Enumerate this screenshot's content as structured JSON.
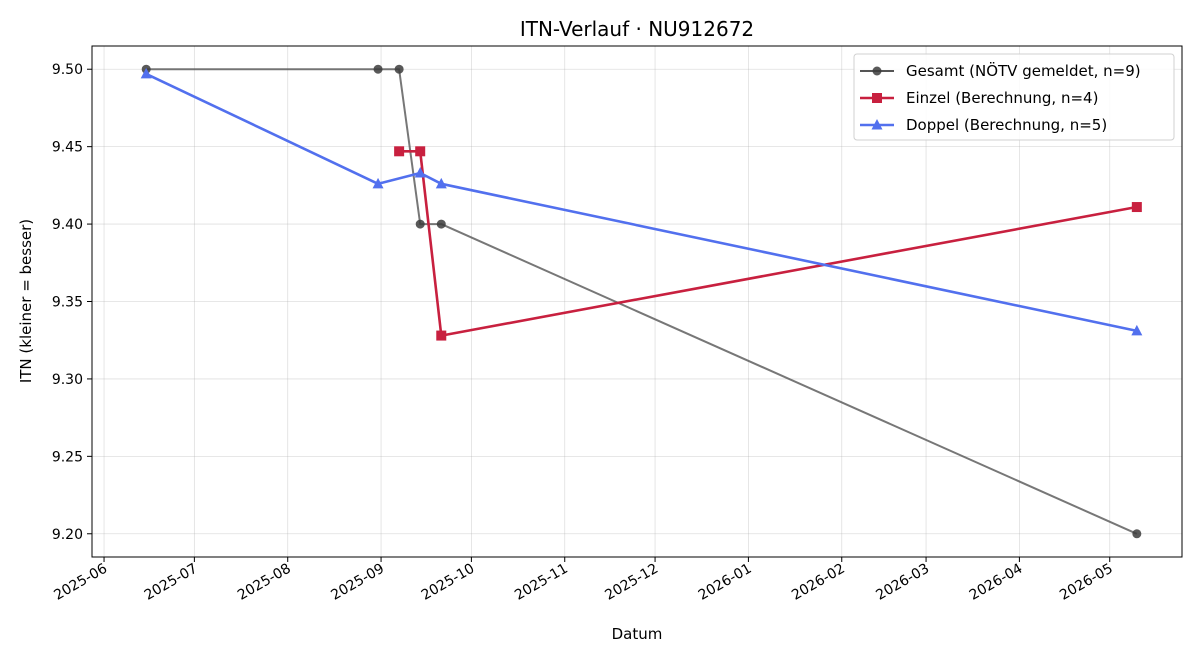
{
  "chart_data": {
    "type": "line",
    "title": "ITN-Verlauf · NU912672",
    "xlabel": "Datum",
    "ylabel": "ITN  (kleiner = besser)",
    "x_axis_type": "date",
    "xlim": [
      "2025-05-28",
      "2026-05-25"
    ],
    "ylim": [
      9.185,
      9.515
    ],
    "x_ticks": [
      "2025-06-01",
      "2025-07-01",
      "2025-08-01",
      "2025-09-01",
      "2025-10-01",
      "2025-11-01",
      "2025-12-01",
      "2026-01-01",
      "2026-02-01",
      "2026-03-01",
      "2026-04-01",
      "2026-05-01"
    ],
    "x_tick_labels": [
      "2025-06",
      "2025-07",
      "2025-08",
      "2025-09",
      "2025-10",
      "2025-11",
      "2025-12",
      "2026-01",
      "2026-02",
      "2026-03",
      "2026-04",
      "2026-05"
    ],
    "y_ticks": [
      9.2,
      9.25,
      9.3,
      9.35,
      9.4,
      9.45,
      9.5
    ],
    "y_tick_labels": [
      "9.20",
      "9.25",
      "9.30",
      "9.35",
      "9.40",
      "9.45",
      "9.50"
    ],
    "grid": true,
    "legend_position": "top-right",
    "series": [
      {
        "name": "Gesamt (NÖTV gemeldet, n=9)",
        "color": "#555555",
        "marker": "circle",
        "points": [
          {
            "x": "2025-06-15",
            "y": 9.5
          },
          {
            "x": "2025-08-31",
            "y": 9.5
          },
          {
            "x": "2025-09-07",
            "y": 9.5
          },
          {
            "x": "2025-09-14",
            "y": 9.4
          },
          {
            "x": "2025-09-21",
            "y": 9.4
          },
          {
            "x": "2026-05-10",
            "y": 9.2
          }
        ]
      },
      {
        "name": "Einzel (Berechnung, n=4)",
        "color": "#c8203f",
        "marker": "square",
        "points": [
          {
            "x": "2025-09-07",
            "y": 9.447
          },
          {
            "x": "2025-09-14",
            "y": 9.447
          },
          {
            "x": "2025-09-21",
            "y": 9.328
          },
          {
            "x": "2026-05-10",
            "y": 9.411
          }
        ]
      },
      {
        "name": "Doppel (Berechnung, n=5)",
        "color": "#5270ee",
        "marker": "triangle",
        "points": [
          {
            "x": "2025-06-15",
            "y": 9.497
          },
          {
            "x": "2025-08-31",
            "y": 9.426
          },
          {
            "x": "2025-09-14",
            "y": 9.433
          },
          {
            "x": "2025-09-21",
            "y": 9.426
          },
          {
            "x": "2026-05-10",
            "y": 9.331
          }
        ]
      }
    ]
  }
}
